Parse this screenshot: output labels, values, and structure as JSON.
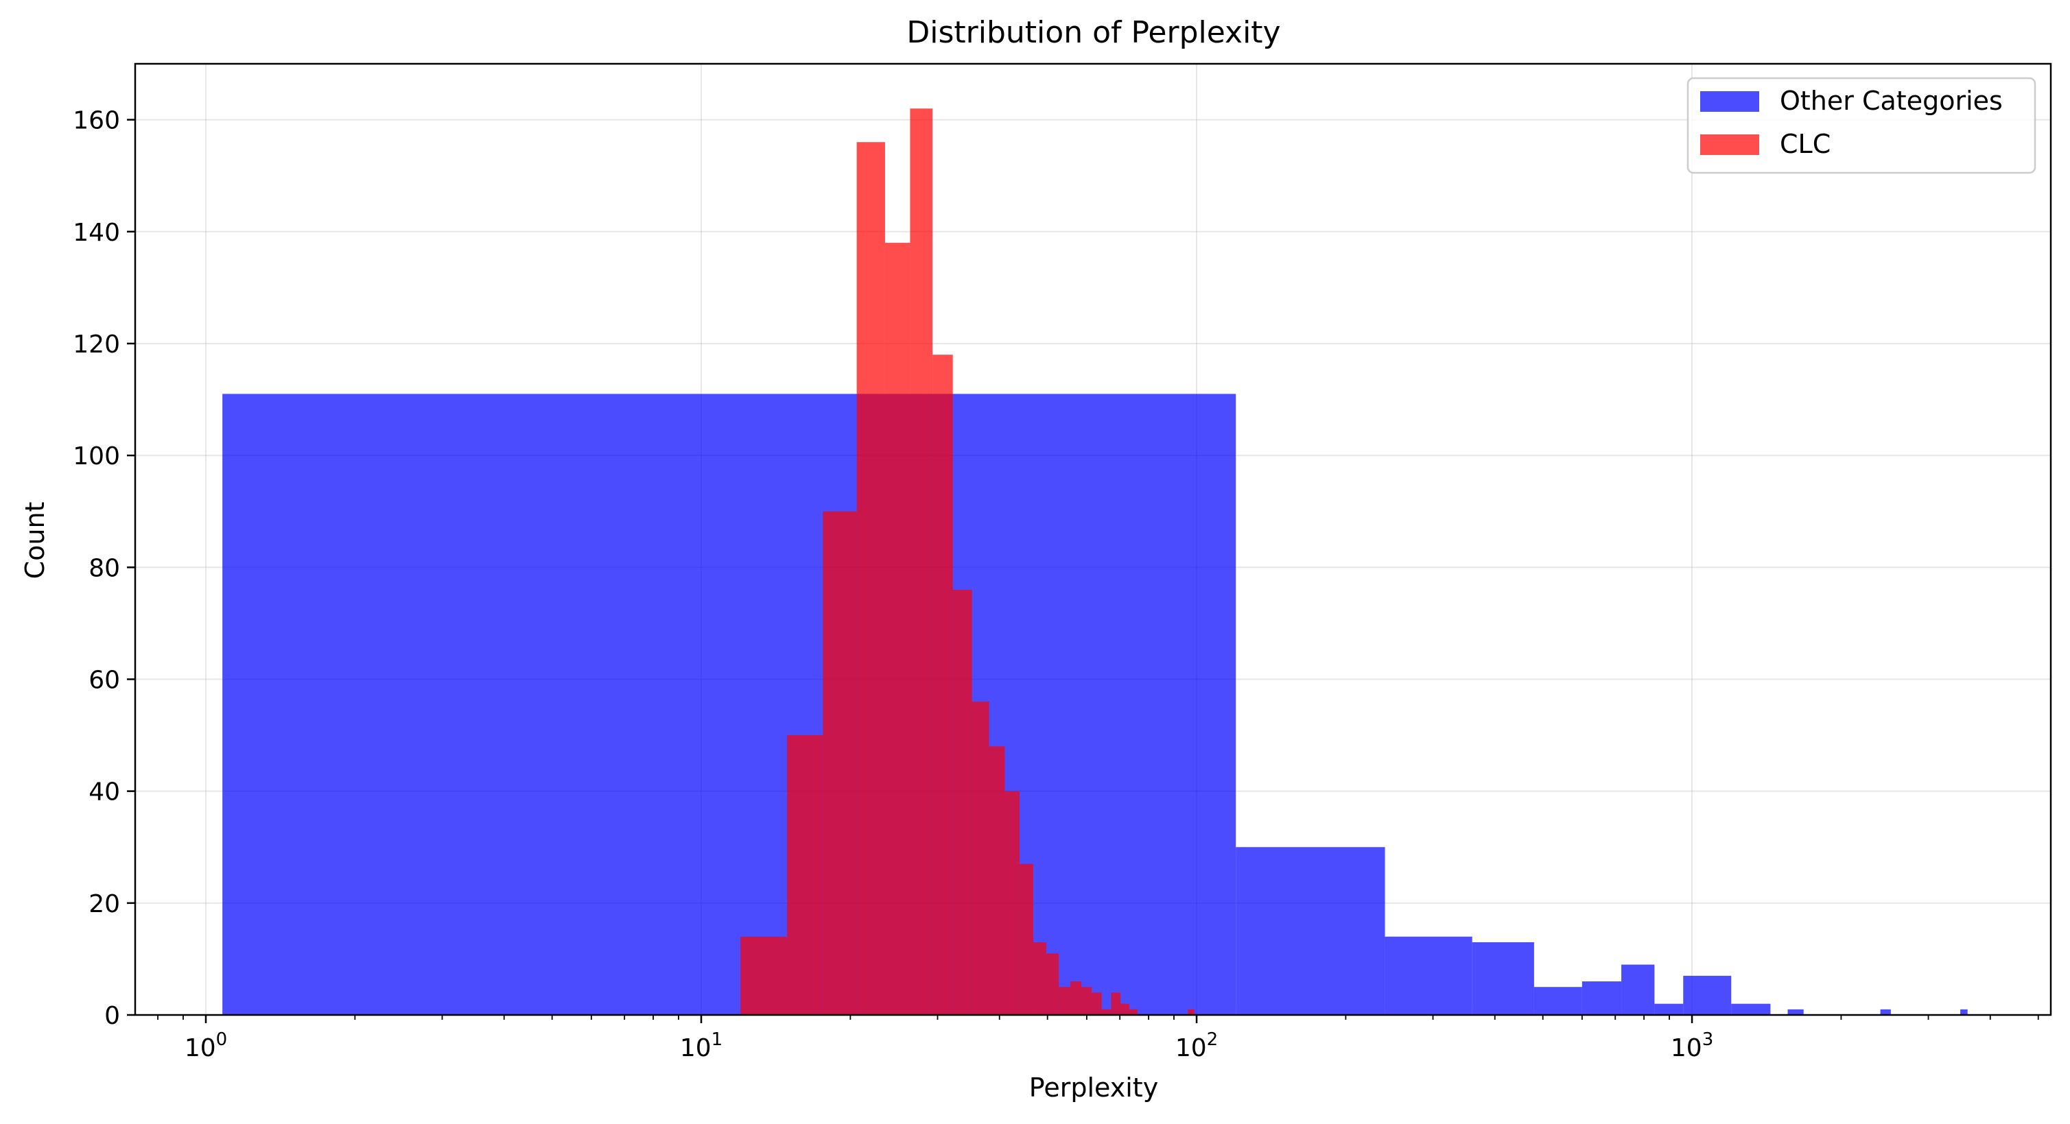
{
  "chart_data": {
    "type": "bar",
    "title": "Distribution of Perplexity",
    "xlabel": "Perplexity",
    "ylabel": "Count",
    "xscale": "log",
    "xlim": [
      0.72,
      5300
    ],
    "ylim": [
      0,
      170
    ],
    "grid": true,
    "legend_position": "top-right",
    "xticks": [
      {
        "value": 1,
        "base": "10",
        "exp": "0"
      },
      {
        "value": 10,
        "base": "10",
        "exp": "1"
      },
      {
        "value": 100,
        "base": "10",
        "exp": "2"
      },
      {
        "value": 1000,
        "base": "10",
        "exp": "3"
      }
    ],
    "yticks": [
      0,
      20,
      40,
      60,
      80,
      100,
      120,
      140,
      160
    ],
    "series": [
      {
        "name": "Other Categories",
        "color": "#0000ff",
        "opacity": 0.7,
        "bins": [
          [
            1.08,
            120,
            111
          ],
          [
            120,
            240,
            30
          ],
          [
            240,
            360,
            14
          ],
          [
            360,
            480,
            13
          ],
          [
            480,
            600,
            5
          ],
          [
            600,
            720,
            6
          ],
          [
            720,
            840,
            9
          ],
          [
            840,
            960,
            2
          ],
          [
            960,
            1200,
            7
          ],
          [
            1200,
            1440,
            2
          ],
          [
            1560,
            1680,
            1
          ],
          [
            2400,
            2520,
            1
          ],
          [
            3480,
            3600,
            1
          ]
        ]
      },
      {
        "name": "CLC",
        "color": "#ff0000",
        "opacity": 0.7,
        "bins": [
          [
            12.0,
            14.9,
            14
          ],
          [
            14.9,
            17.6,
            50
          ],
          [
            17.6,
            20.6,
            90
          ],
          [
            20.6,
            23.5,
            156
          ],
          [
            23.5,
            26.4,
            138
          ],
          [
            26.4,
            29.3,
            162
          ],
          [
            29.3,
            32.2,
            118
          ],
          [
            32.2,
            35.2,
            76
          ],
          [
            35.2,
            38.1,
            56
          ],
          [
            38.1,
            41.0,
            48
          ],
          [
            41.0,
            43.9,
            40
          ],
          [
            43.9,
            46.8,
            27
          ],
          [
            46.8,
            49.7,
            13
          ],
          [
            49.7,
            52.7,
            11
          ],
          [
            52.7,
            55.6,
            5
          ],
          [
            55.6,
            58.5,
            6
          ],
          [
            58.5,
            61.4,
            5
          ],
          [
            61.4,
            64.3,
            4
          ],
          [
            64.3,
            67.2,
            1
          ],
          [
            67.2,
            70.2,
            4
          ],
          [
            70.2,
            73.1,
            2
          ],
          [
            73.1,
            76.0,
            1
          ],
          [
            96,
            99,
            1
          ]
        ]
      }
    ]
  }
}
